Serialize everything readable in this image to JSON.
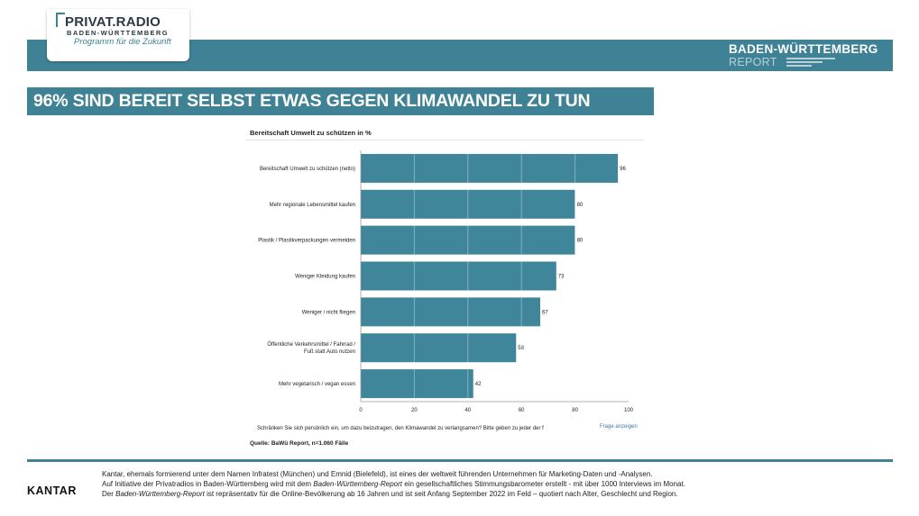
{
  "header": {
    "logo_title": "PRIVAT.RADIO",
    "logo_subtitle": "BADEN-WÜRTTEMBERG",
    "logo_tagline": "Programm für die Zukunft",
    "report_line1": "BADEN-WÜRTTEMBERG",
    "report_line2": "REPORT"
  },
  "headline": "96% SIND BEREIT SELBST ETWAS GEGEN KLIMAWANDEL ZU TUN",
  "chart_data": {
    "type": "bar",
    "orientation": "horizontal",
    "title": "Bereitschaft Umwelt zu schützen in %",
    "categories": [
      [
        "Bereitschaft Umwelt zu schützen (netto)"
      ],
      [
        "Mehr regionale Lebensmittel kaufen"
      ],
      [
        "Plastik / Plastikverpackungen vermeiden"
      ],
      [
        "Weniger Kleidung kaufen"
      ],
      [
        "Weniger / nicht fliegen"
      ],
      [
        "Öffentliche Verkehrsmittel / Fahrrad /",
        "Fuß statt Auto nutzen"
      ],
      [
        "Mehr vegetarisch / vegan essen"
      ]
    ],
    "values": [
      96,
      80,
      80,
      73,
      67,
      58,
      42
    ],
    "xlim": [
      0,
      100
    ],
    "xticks": [
      0,
      20,
      40,
      60,
      80,
      100
    ],
    "grid": true,
    "bar_color": "#40869b"
  },
  "question": "Schränken Sie sich persönlich ein, um dazu beizutragen, den Klimawandel zu verlangsamen? Bitte geben zu jeder der f",
  "frage_link": "Frage anzeigen",
  "source": "Quelle: BaWü Report, n=1.060 Fälle",
  "footer": {
    "brand": "KANTAR",
    "line1": "Kantar, ehemals formierend unter dem Namen Infratest (München) und Emnid (Bielefeld), ist eines der weltweit führenden Unternehmen für Marketing-Daten und -Analysen.",
    "line2_a": "Auf Initiative der Privatradios in Baden-Württemberg wird mit dem ",
    "line2_em": "Baden-Württemberg-Report",
    "line2_b": " ein gesellschaftliches Stimmungsbarometer erstellt - mit über 1000 Interviews im Monat.",
    "line3_a": "Der ",
    "line3_em": "Baden-Württemberg-Report",
    "line3_b": " ist repräsentativ für die Online-Bevölkerung ab 16 Jahren und ist seit Anfang September 2022 im Feld – quotiert nach Alter, Geschlecht und Region."
  }
}
